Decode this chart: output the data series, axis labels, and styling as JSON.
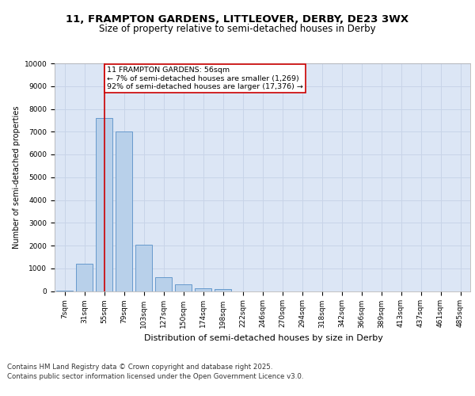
{
  "title_line1": "11, FRAMPTON GARDENS, LITTLEOVER, DERBY, DE23 3WX",
  "title_line2": "Size of property relative to semi-detached houses in Derby",
  "xlabel": "Distribution of semi-detached houses by size in Derby",
  "ylabel": "Number of semi-detached properties",
  "categories": [
    "7sqm",
    "31sqm",
    "55sqm",
    "79sqm",
    "103sqm",
    "127sqm",
    "150sqm",
    "174sqm",
    "198sqm",
    "222sqm",
    "246sqm",
    "270sqm",
    "294sqm",
    "318sqm",
    "342sqm",
    "366sqm",
    "389sqm",
    "413sqm",
    "437sqm",
    "461sqm",
    "485sqm"
  ],
  "values": [
    30,
    1200,
    7600,
    7000,
    2050,
    620,
    300,
    130,
    80,
    0,
    0,
    0,
    0,
    0,
    0,
    0,
    0,
    0,
    0,
    0,
    0
  ],
  "bar_color": "#b8d0ea",
  "bar_edge_color": "#6699cc",
  "vline_x": 2,
  "vline_color": "#cc0000",
  "annotation_text": "11 FRAMPTON GARDENS: 56sqm\n← 7% of semi-detached houses are smaller (1,269)\n92% of semi-detached houses are larger (17,376) →",
  "annotation_box_color": "#ffffff",
  "annotation_box_edge": "#cc0000",
  "ylim": [
    0,
    10000
  ],
  "yticks": [
    0,
    1000,
    2000,
    3000,
    4000,
    5000,
    6000,
    7000,
    8000,
    9000,
    10000
  ],
  "grid_color": "#c8d4e8",
  "background_color": "#dce6f5",
  "footer_line1": "Contains HM Land Registry data © Crown copyright and database right 2025.",
  "footer_line2": "Contains public sector information licensed under the Open Government Licence v3.0.",
  "title_fontsize": 9.5,
  "subtitle_fontsize": 8.5,
  "axis_fontsize": 7,
  "tick_fontsize": 6.5,
  "annotation_fontsize": 6.8,
  "footer_fontsize": 6.2,
  "xlabel_fontsize": 8
}
